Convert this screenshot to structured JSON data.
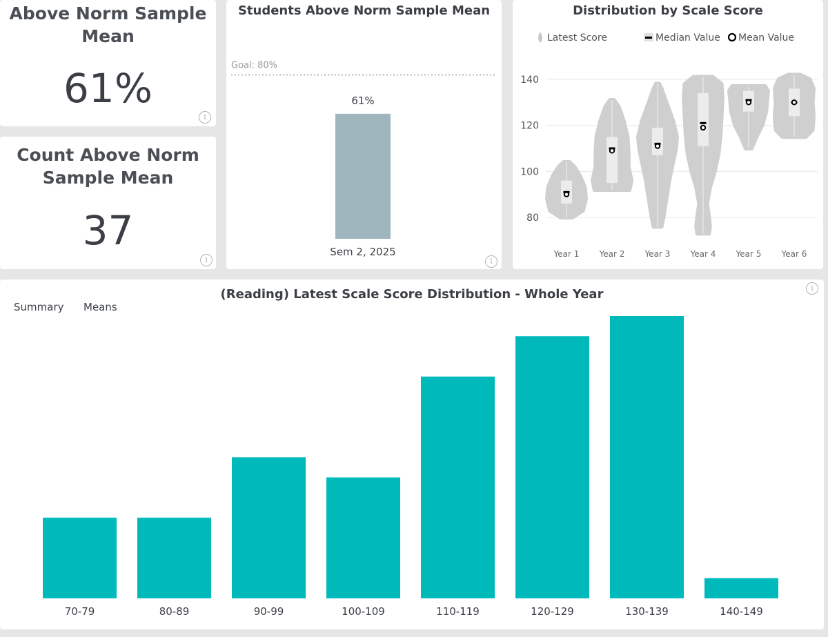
{
  "kpi_mean": {
    "title_line1": "Above Norm Sample",
    "title_line2": "Mean",
    "value": "61%"
  },
  "kpi_count": {
    "title_line1": "Count Above Norm",
    "title_line2": "Sample Mean",
    "value": "37"
  },
  "info_glyph": "i",
  "chart_data": [
    {
      "type": "bar",
      "title": "Students Above Norm Sample Mean",
      "categories": [
        "Sem 2, 2025"
      ],
      "values": [
        61
      ],
      "value_labels": [
        "61%"
      ],
      "goal_label": "Goal: 80%",
      "goal": 80,
      "ylim": [
        0,
        100
      ],
      "colors": {
        "bar": "#9fb6bf",
        "goal_line": "#c8c8c8"
      }
    },
    {
      "type": "violin",
      "title": "Distribution by Scale Score",
      "legend": [
        "Latest Score",
        "Median Value",
        "Mean Value"
      ],
      "categories": [
        "Year 1",
        "Year 2",
        "Year 3",
        "Year 4",
        "Year 5",
        "Year 6"
      ],
      "yticks": [
        80,
        100,
        120,
        140
      ],
      "ylim": [
        72,
        145
      ],
      "series": [
        {
          "name": "Year 1",
          "min": 80,
          "max": 104,
          "q1": 86,
          "q3": 96,
          "median": 91,
          "mean": 90,
          "shape": [
            [
              80,
              0.3
            ],
            [
              83,
              0.85
            ],
            [
              88,
              1
            ],
            [
              93,
              0.95
            ],
            [
              98,
              0.7
            ],
            [
              102,
              0.4
            ],
            [
              104,
              0.15
            ]
          ]
        },
        {
          "name": "Year 2",
          "min": 92,
          "max": 131,
          "q1": 95,
          "q3": 115,
          "median": 110,
          "mean": 109,
          "shape": [
            [
              92,
              0.9
            ],
            [
              96,
              1
            ],
            [
              102,
              0.85
            ],
            [
              108,
              0.85
            ],
            [
              115,
              0.8
            ],
            [
              122,
              0.6
            ],
            [
              128,
              0.35
            ],
            [
              131,
              0.1
            ]
          ]
        },
        {
          "name": "Year 3",
          "min": 76,
          "max": 138,
          "q1": 107,
          "q3": 119,
          "median": 112,
          "mean": 111,
          "shape": [
            [
              76,
              0.2
            ],
            [
              80,
              0.3
            ],
            [
              88,
              0.45
            ],
            [
              96,
              0.6
            ],
            [
              104,
              0.8
            ],
            [
              110,
              0.95
            ],
            [
              115,
              1
            ],
            [
              122,
              0.8
            ],
            [
              130,
              0.45
            ],
            [
              136,
              0.2
            ],
            [
              138,
              0.08
            ]
          ]
        },
        {
          "name": "Year 4",
          "min": 73,
          "max": 141,
          "q1": 111,
          "q3": 134,
          "median": 121,
          "mean": 119,
          "shape": [
            [
              73,
              0.3
            ],
            [
              76,
              0.35
            ],
            [
              80,
              0.3
            ],
            [
              86,
              0.2
            ],
            [
              93,
              0.35
            ],
            [
              100,
              0.6
            ],
            [
              108,
              0.8
            ],
            [
              116,
              0.9
            ],
            [
              124,
              0.95
            ],
            [
              132,
              1
            ],
            [
              138,
              0.95
            ],
            [
              141,
              0.5
            ]
          ]
        },
        {
          "name": "Year 5",
          "min": 110,
          "max": 137,
          "q1": 126,
          "q3": 135,
          "median": 131,
          "mean": 130,
          "shape": [
            [
              110,
              0.15
            ],
            [
              115,
              0.4
            ],
            [
              120,
              0.7
            ],
            [
              126,
              0.9
            ],
            [
              131,
              0.95
            ],
            [
              135,
              1
            ],
            [
              137,
              0.85
            ]
          ]
        },
        {
          "name": "Year 6",
          "min": 115,
          "max": 142,
          "q1": 124,
          "q3": 136,
          "median": 130,
          "mean": 130,
          "shape": [
            [
              115,
              0.6
            ],
            [
              118,
              0.95
            ],
            [
              124,
              1
            ],
            [
              130,
              0.95
            ],
            [
              136,
              1
            ],
            [
              140,
              0.8
            ],
            [
              142,
              0.3
            ]
          ]
        }
      ],
      "colors": {
        "violin": "#cfcfcf",
        "box": "#ececec",
        "grid": "#e8e8e8"
      }
    },
    {
      "type": "bar",
      "title": "(Reading) Latest Scale Score Distribution - Whole Year",
      "categories": [
        "70-79",
        "80-89",
        "90-99",
        "100-109",
        "110-119",
        "120-129",
        "130-139",
        "140-149"
      ],
      "values": [
        4,
        4,
        7,
        6,
        11,
        13,
        14,
        1
      ],
      "ylim": [
        0,
        14
      ],
      "colors": {
        "bar": "#00b9bb"
      }
    }
  ],
  "tabs": {
    "summary": "Summary",
    "means": "Means"
  }
}
